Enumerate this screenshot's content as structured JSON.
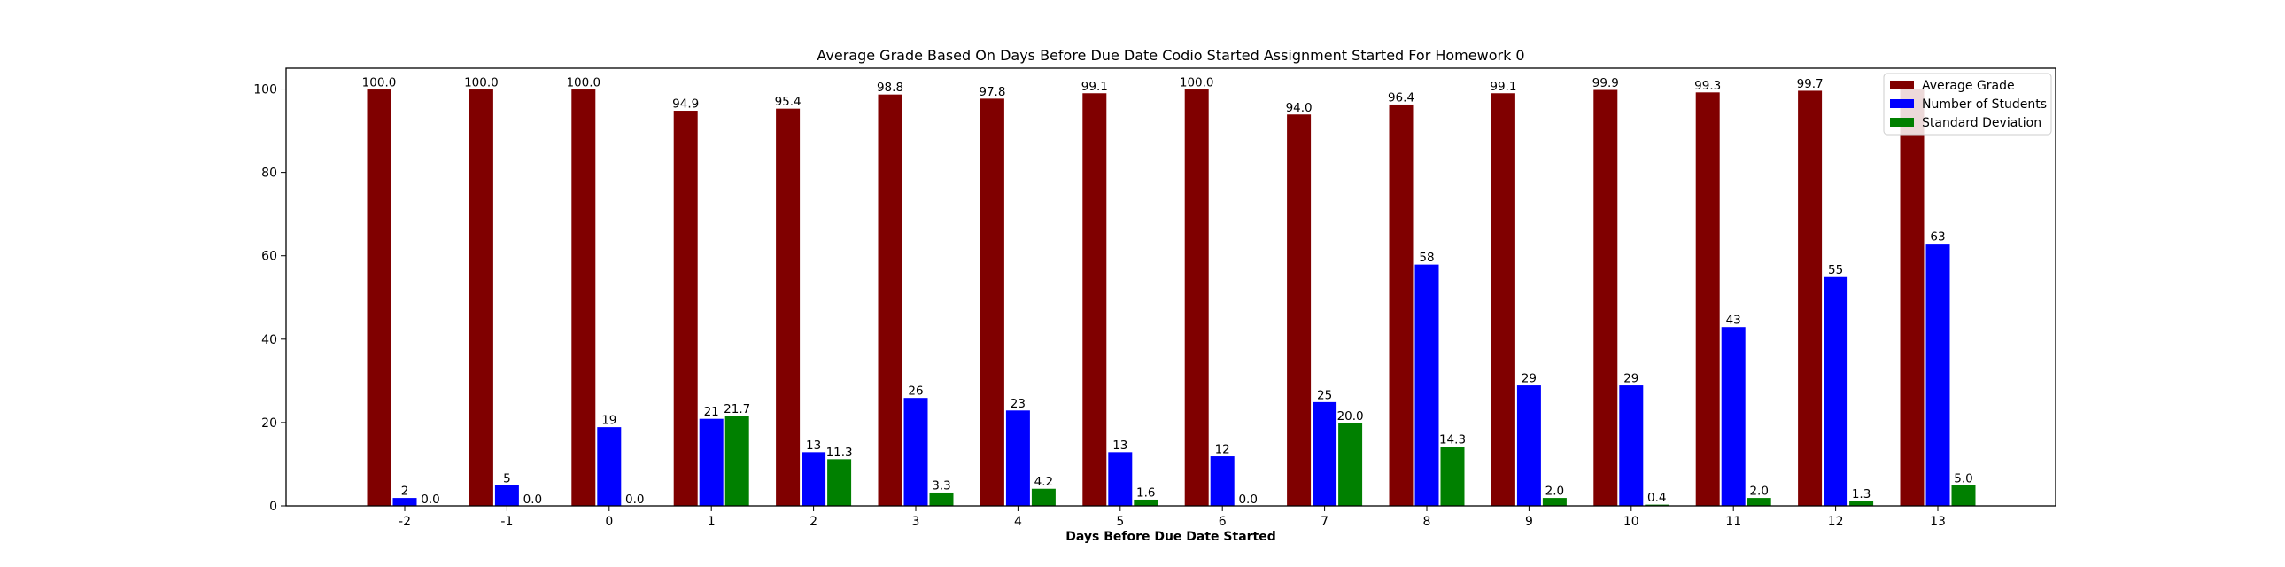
{
  "chart_data": {
    "type": "bar",
    "title": "Average Grade Based On Days Before Due Date Codio Started Assignment Started For Homework 0",
    "xlabel": "Days Before Due Date Started",
    "ylabel": "",
    "categories": [
      "-2",
      "-1",
      "0",
      "1",
      "2",
      "3",
      "4",
      "5",
      "6",
      "7",
      "8",
      "9",
      "10",
      "11",
      "12",
      "13"
    ],
    "ylim": [
      0,
      105
    ],
    "yticks": [
      0,
      20,
      40,
      60,
      80,
      100
    ],
    "grid": false,
    "legend_position": "top-right",
    "series": [
      {
        "name": "Average Grade",
        "color": "#800000",
        "values": [
          100.0,
          100.0,
          100.0,
          94.9,
          95.4,
          98.8,
          97.8,
          99.1,
          100.0,
          94.0,
          96.4,
          99.1,
          99.9,
          99.3,
          99.7,
          100.0
        ],
        "labels": [
          "100.0",
          "100.0",
          "100.0",
          "94.9",
          "95.4",
          "98.8",
          "97.8",
          "99.1",
          "100.0",
          "94.0",
          "96.4",
          "99.1",
          "99.9",
          "99.3",
          "99.7",
          ""
        ]
      },
      {
        "name": "Number of Students",
        "color": "#0000ff",
        "values": [
          2,
          5,
          19,
          21,
          13,
          26,
          23,
          13,
          12,
          25,
          58,
          29,
          29,
          43,
          55,
          63
        ],
        "labels": [
          "2",
          "5",
          "19",
          "21",
          "13",
          "26",
          "23",
          "13",
          "12",
          "25",
          "58",
          "29",
          "29",
          "43",
          "55",
          "63"
        ]
      },
      {
        "name": "Standard Deviation",
        "color": "#008000",
        "values": [
          0.0,
          0.0,
          0.0,
          21.7,
          11.3,
          3.3,
          4.2,
          1.6,
          0.0,
          20.0,
          14.3,
          2.0,
          0.4,
          2.0,
          1.3,
          5.0
        ],
        "labels": [
          "0.0",
          "0.0",
          "0.0",
          "21.7",
          "11.3",
          "3.3",
          "4.2",
          "1.6",
          "0.0",
          "20.0",
          "14.3",
          "2.0",
          "0.4",
          "2.0",
          "1.3",
          "5.0"
        ]
      }
    ]
  }
}
